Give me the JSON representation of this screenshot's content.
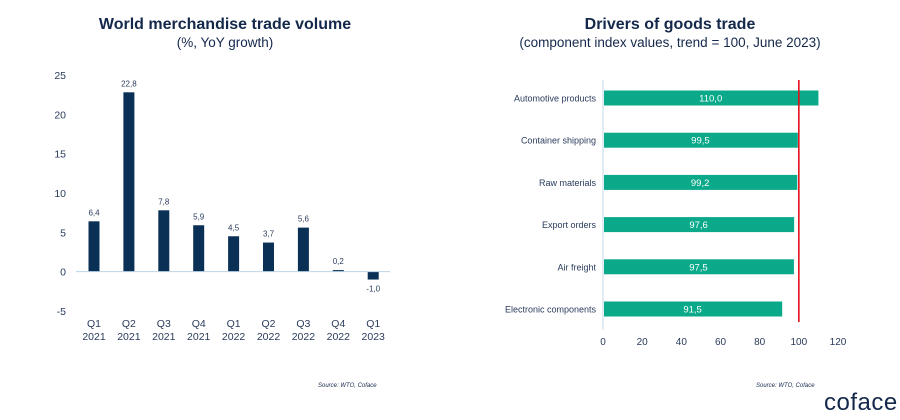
{
  "chart_data": [
    {
      "type": "bar",
      "title": "World merchandise trade volume",
      "subtitle": "(%, YoY growth)",
      "categories": [
        [
          "Q1",
          "2021"
        ],
        [
          "Q2",
          "2021"
        ],
        [
          "Q3",
          "2021"
        ],
        [
          "Q4",
          "2021"
        ],
        [
          "Q1",
          "2022"
        ],
        [
          "Q2",
          "2022"
        ],
        [
          "Q3",
          "2022"
        ],
        [
          "Q4",
          "2022"
        ],
        [
          "Q1",
          "2023"
        ]
      ],
      "values": [
        6.4,
        22.8,
        7.8,
        5.9,
        4.5,
        3.7,
        5.6,
        0.2,
        -1.0
      ],
      "value_labels": [
        "6,4",
        "22,8",
        "7,8",
        "5,9",
        "4,5",
        "3,7",
        "5,6",
        "0,2",
        "-1,0"
      ],
      "xlabel": "",
      "ylabel": "",
      "ylim": [
        -5,
        25
      ],
      "yticks": [
        25,
        20,
        15,
        10,
        5,
        0,
        -5
      ],
      "grid": false,
      "bar_color": "#0a3055",
      "source": "Source: WTO, Coface"
    },
    {
      "type": "bar",
      "orientation": "horizontal",
      "title": "Drivers of goods trade",
      "subtitle": "(component index values, trend = 100, June 2023)",
      "categories": [
        "Automotive products",
        "Container shipping",
        "Raw materials",
        "Export orders",
        "Air freight",
        "Electronic components"
      ],
      "values": [
        110.0,
        99.5,
        99.2,
        97.6,
        97.5,
        91.5
      ],
      "value_labels": [
        "110,0",
        "99,5",
        "99,2",
        "97,6",
        "97,5",
        "91,5"
      ],
      "xlim": [
        0,
        120
      ],
      "xticks": [
        0,
        20,
        40,
        60,
        80,
        100,
        120
      ],
      "reference_line": {
        "value": 100,
        "color": "#e3111b",
        "label": "trend = 100"
      },
      "grid": false,
      "bar_color": "#0aa98a",
      "source": "Source: WTO, Coface"
    }
  ],
  "branding": {
    "logo_text": "coface"
  }
}
